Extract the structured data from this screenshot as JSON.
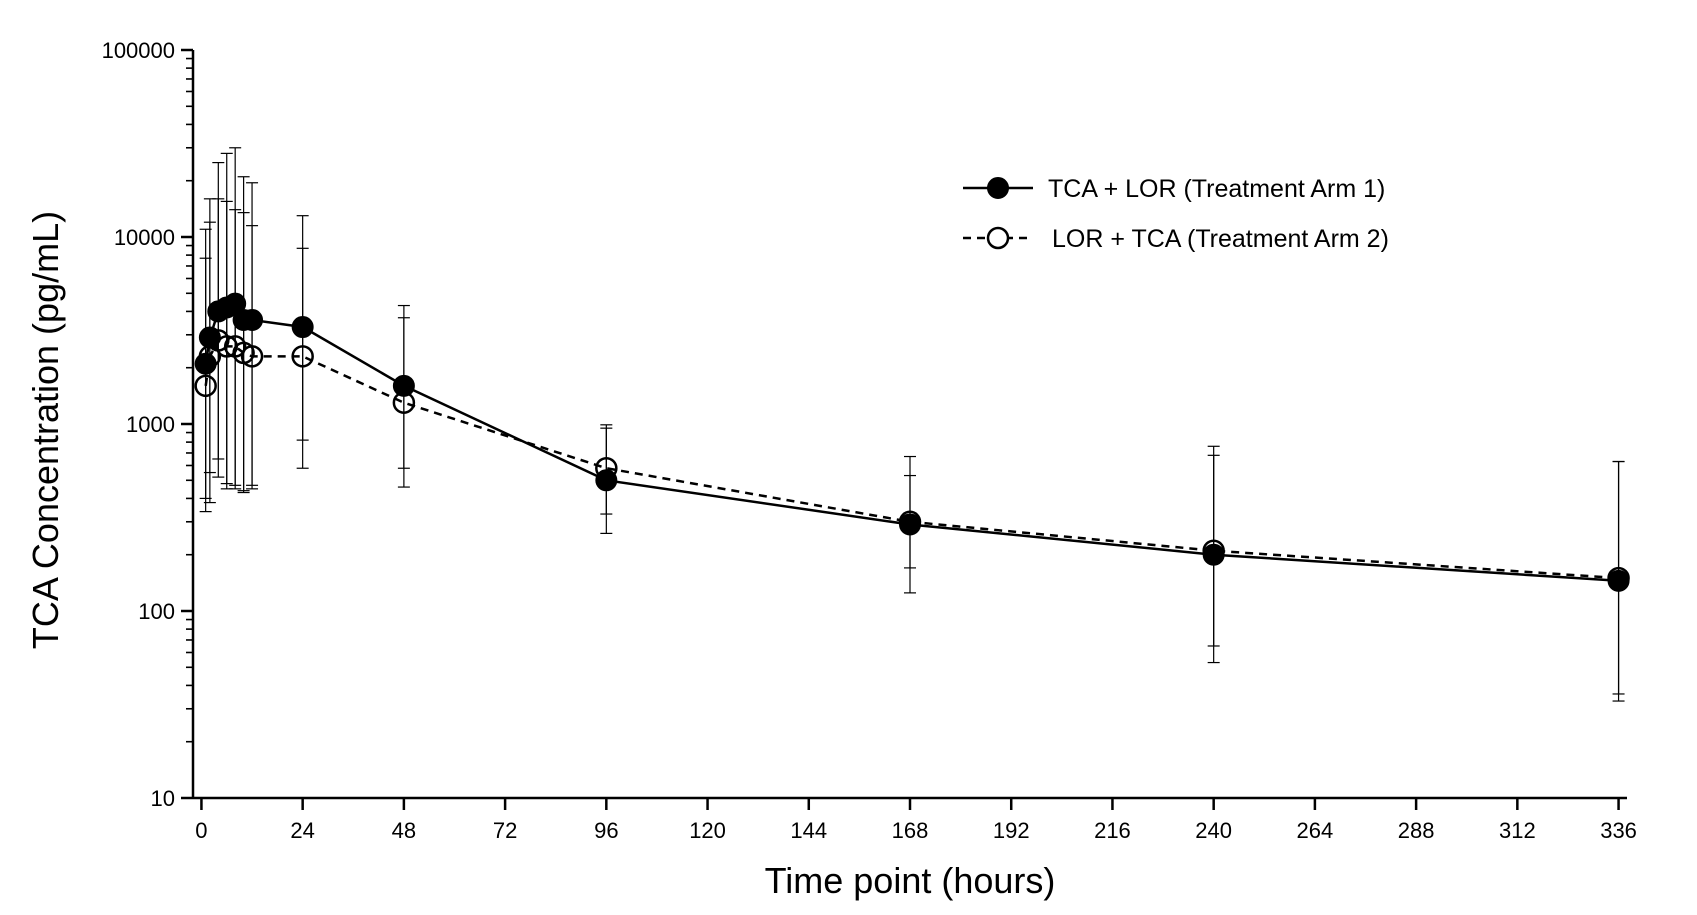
{
  "chart_data": {
    "type": "line",
    "title": "",
    "xlabel": "Time point (hours)",
    "ylabel": "TCA Concentration (pg/mL)",
    "xlim": [
      -2,
      338
    ],
    "ylim": [
      10,
      100000
    ],
    "yscale": "log",
    "x_ticks": [
      0,
      24,
      48,
      72,
      96,
      120,
      144,
      168,
      192,
      216,
      240,
      264,
      288,
      312,
      336
    ],
    "x_tick_labels": [
      "0",
      "24",
      "48",
      "72",
      "96",
      "120",
      "144",
      "168",
      "192",
      "216",
      "240",
      "264",
      "288",
      "312",
      "336"
    ],
    "y_ticks": [
      10,
      100,
      1000,
      10000,
      100000
    ],
    "y_tick_labels": [
      "10",
      "100",
      "1000",
      "10000",
      "100000"
    ],
    "legend_position": "top-right",
    "series": [
      {
        "name": "TCA + LOR (Treatment Arm 1)",
        "marker": "filled-circle",
        "line_style": "solid",
        "x": [
          1,
          2,
          4,
          6,
          8,
          10,
          12,
          24,
          48,
          96,
          168,
          240,
          336
        ],
        "y": [
          2100,
          2900,
          4000,
          4200,
          4400,
          3600,
          3600,
          3300,
          1600,
          500,
          290,
          200,
          145
        ],
        "err_low": [
          400,
          550,
          650,
          480,
          450,
          430,
          450,
          820,
          580,
          330,
          170,
          65,
          36
        ],
        "err_high": [
          11000,
          16000,
          16000,
          15500,
          14000,
          13500,
          11500,
          13000,
          3700,
          950,
          530,
          680,
          630
        ]
      },
      {
        "name": "LOR + TCA (Treatment Arm 2)",
        "marker": "open-circle",
        "line_style": "dashed",
        "x": [
          1,
          2,
          4,
          6,
          8,
          10,
          12,
          24,
          48,
          96,
          168,
          240,
          336
        ],
        "y": [
          1600,
          2300,
          2800,
          2600,
          2600,
          2400,
          2300,
          2300,
          1300,
          580,
          300,
          210,
          150
        ],
        "err_low": [
          340,
          380,
          520,
          450,
          470,
          440,
          470,
          580,
          460,
          260,
          125,
          53,
          33
        ],
        "err_high": [
          7700,
          12000,
          25000,
          28000,
          30000,
          21000,
          19500,
          8700,
          4300,
          990,
          670,
          760,
          630
        ]
      }
    ]
  },
  "legend": {
    "entries": [
      "TCA + LOR (Treatment Arm 1)",
      "LOR + TCA (Treatment Arm 2)"
    ]
  },
  "colors": {
    "line": "#000000",
    "background": "#ffffff"
  }
}
